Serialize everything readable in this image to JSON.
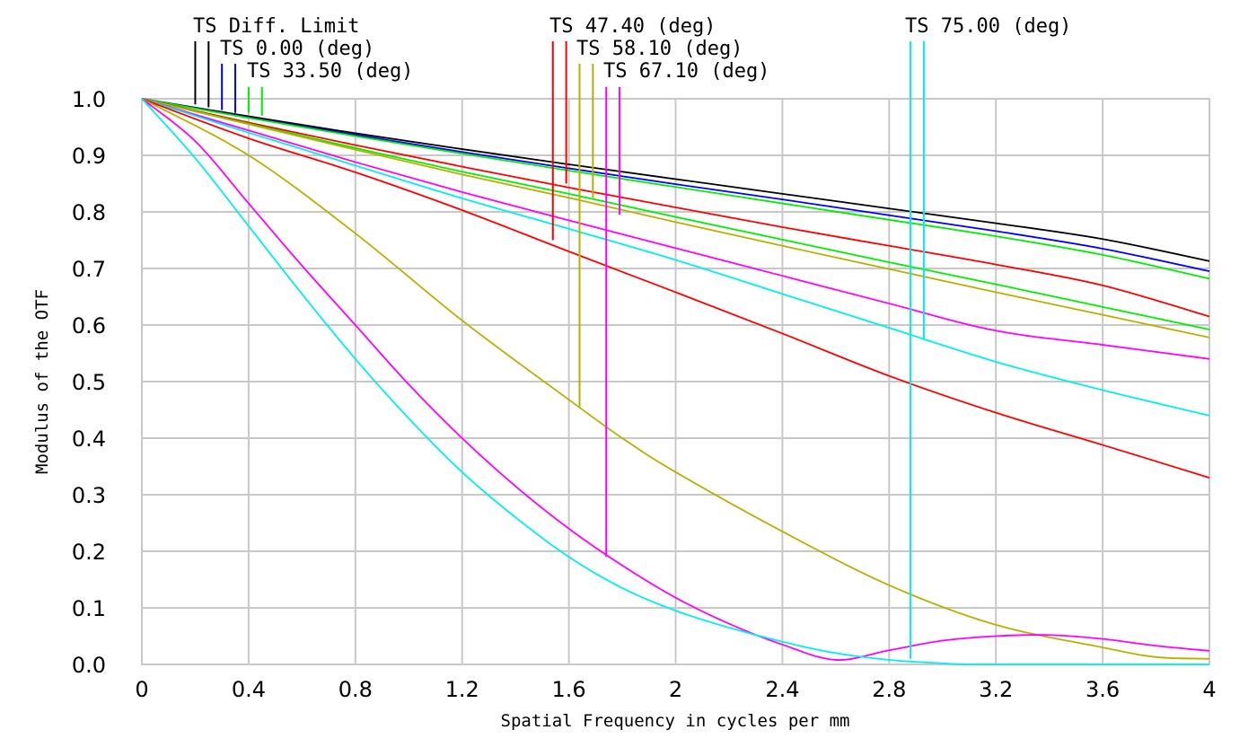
{
  "chart_data": {
    "type": "line",
    "title": "",
    "xlabel": "Spatial Frequency in cycles per mm",
    "ylabel": "Modulus of the OTF",
    "xlim": [
      0,
      4
    ],
    "ylim": [
      0,
      1
    ],
    "grid": true,
    "legend_placement": "top",
    "x_tick_values": [
      0,
      0.4,
      0.8,
      1.2,
      1.6,
      2,
      2.4,
      2.8,
      3.2,
      3.6,
      4
    ],
    "x_tick_labels": [
      "0",
      "0.4",
      "0.8",
      "1.2",
      "1.6",
      "2",
      "2.4",
      "2.8",
      "3.2",
      "3.6",
      "4"
    ],
    "y_tick_values": [
      0,
      0.1,
      0.2,
      0.3,
      0.4,
      0.5,
      0.6,
      0.7,
      0.8,
      0.9,
      1.0
    ],
    "y_tick_labels": [
      "0.0",
      "0.1",
      "0.2",
      "0.3",
      "0.4",
      "0.5",
      "0.6",
      "0.7",
      "0.8",
      "0.9",
      "1.0"
    ],
    "legend": [
      {
        "label": "TS Diff. Limit",
        "color": "#000000",
        "markers": [
          {
            "x": 0.2,
            "y": 0.99
          },
          {
            "x": 0.25,
            "y": 0.985
          }
        ]
      },
      {
        "label": "TS 0.00 (deg)",
        "color": "#0000ff",
        "markers": [
          {
            "x": 0.3,
            "y": 0.98
          },
          {
            "x": 0.35,
            "y": 0.975
          }
        ]
      },
      {
        "label": "TS 33.50 (deg)",
        "color": "#00ee00",
        "markers": [
          {
            "x": 0.4,
            "y": 0.975
          },
          {
            "x": 0.45,
            "y": 0.97
          }
        ]
      },
      {
        "label": "TS 47.40 (deg)",
        "color": "#ff0000",
        "markers": [
          {
            "x": 1.54,
            "y": 0.75
          },
          {
            "x": 1.59,
            "y": 0.85
          }
        ]
      },
      {
        "label": "TS 58.10 (deg)",
        "color": "#b8b000",
        "markers": [
          {
            "x": 1.64,
            "y": 0.455
          },
          {
            "x": 1.69,
            "y": 0.825
          }
        ]
      },
      {
        "label": "TS 67.10 (deg)",
        "color": "#ff00ff",
        "markers": [
          {
            "x": 1.74,
            "y": 0.19
          },
          {
            "x": 1.79,
            "y": 0.795
          }
        ]
      },
      {
        "label": "TS 75.00 (deg)",
        "color": "#00eeee",
        "markers": [
          {
            "x": 2.88,
            "y": 0.01
          },
          {
            "x": 2.93,
            "y": 0.575
          }
        ]
      }
    ],
    "series": [
      {
        "color": "#000000",
        "x": [
          0,
          0.4,
          0.8,
          1.2,
          1.6,
          2,
          2.4,
          2.8,
          3.2,
          3.6,
          4
        ],
        "y": [
          1.0,
          0.969,
          0.939,
          0.911,
          0.884,
          0.858,
          0.832,
          0.806,
          0.78,
          0.752,
          0.713
        ]
      },
      {
        "color": "#0000ff",
        "x": [
          0,
          0.4,
          0.8,
          1.2,
          1.6,
          2,
          2.4,
          2.8,
          3.2,
          3.6,
          4
        ],
        "y": [
          1.0,
          0.967,
          0.936,
          0.906,
          0.877,
          0.849,
          0.822,
          0.794,
          0.766,
          0.735,
          0.695
        ]
      },
      {
        "color": "#00ee00",
        "x": [
          0,
          0.4,
          0.8,
          1.2,
          1.6,
          2,
          2.4,
          2.8,
          3.2,
          3.6,
          4
        ],
        "y": [
          1.0,
          0.966,
          0.934,
          0.903,
          0.873,
          0.844,
          0.815,
          0.786,
          0.757,
          0.724,
          0.682
        ]
      },
      {
        "color": "#ff0000",
        "x": [
          0,
          0.4,
          0.8,
          1.2,
          1.6,
          2,
          2.4,
          2.8,
          3.2,
          3.6,
          4
        ],
        "y": [
          1.0,
          0.958,
          0.918,
          0.88,
          0.843,
          0.808,
          0.773,
          0.74,
          0.707,
          0.67,
          0.615
        ]
      },
      {
        "color": "#00ee00",
        "x": [
          0,
          0.4,
          0.8,
          1.2,
          1.6,
          2,
          2.4,
          2.8,
          3.2,
          3.6,
          4
        ],
        "y": [
          1.0,
          0.956,
          0.913,
          0.871,
          0.832,
          0.791,
          0.751,
          0.711,
          0.672,
          0.632,
          0.592
        ]
      },
      {
        "color": "#b8b000",
        "x": [
          0,
          0.4,
          0.8,
          1.2,
          1.6,
          2,
          2.4,
          2.8,
          3.2,
          3.6,
          4
        ],
        "y": [
          1.0,
          0.955,
          0.91,
          0.866,
          0.825,
          0.782,
          0.74,
          0.699,
          0.658,
          0.618,
          0.578
        ]
      },
      {
        "color": "#ff00ff",
        "x": [
          0,
          0.4,
          0.8,
          1.2,
          1.6,
          2,
          2.4,
          2.8,
          3.2,
          3.6,
          4
        ],
        "y": [
          1.0,
          0.944,
          0.888,
          0.835,
          0.785,
          0.736,
          0.687,
          0.638,
          0.59,
          0.565,
          0.54
        ]
      },
      {
        "color": "#00eeee",
        "x": [
          0,
          0.4,
          0.8,
          1.2,
          1.6,
          2,
          2.4,
          2.8,
          3.2,
          3.6,
          4
        ],
        "y": [
          1.0,
          0.94,
          0.882,
          0.824,
          0.77,
          0.715,
          0.655,
          0.595,
          0.535,
          0.485,
          0.44
        ]
      },
      {
        "color": "#ff0000",
        "x": [
          0,
          0.4,
          0.8,
          1.2,
          1.6,
          2,
          2.4,
          2.8,
          3.2,
          3.6,
          4
        ],
        "y": [
          1.0,
          0.93,
          0.87,
          0.803,
          0.73,
          0.658,
          0.585,
          0.51,
          0.445,
          0.388,
          0.33
        ]
      },
      {
        "color": "#b8b000",
        "x": [
          0,
          0.4,
          0.8,
          1.2,
          1.6,
          1.8,
          2,
          2.4,
          2.8,
          3.2,
          3.6,
          3.8,
          4
        ],
        "y": [
          1.0,
          0.9,
          0.762,
          0.608,
          0.468,
          0.4,
          0.34,
          0.235,
          0.14,
          0.07,
          0.03,
          0.013,
          0.01
        ]
      },
      {
        "color": "#ff00ff",
        "x": [
          0,
          0.2,
          0.4,
          0.6,
          0.8,
          1.0,
          1.2,
          1.4,
          1.6,
          1.8,
          2.0,
          2.2,
          2.4,
          2.6,
          2.8,
          3.0,
          3.2,
          3.4,
          3.6,
          3.8,
          4.0
        ],
        "y": [
          1.0,
          0.925,
          0.815,
          0.705,
          0.6,
          0.495,
          0.4,
          0.315,
          0.24,
          0.175,
          0.118,
          0.072,
          0.035,
          0.008,
          0.025,
          0.042,
          0.05,
          0.052,
          0.045,
          0.033,
          0.024
        ]
      },
      {
        "color": "#00eeee",
        "x": [
          0,
          0.2,
          0.4,
          0.6,
          0.8,
          1.0,
          1.2,
          1.4,
          1.6,
          1.8,
          2.0,
          2.2,
          2.4,
          2.6,
          2.8,
          3.0,
          3.1,
          3.4,
          3.8,
          4.0
        ],
        "y": [
          1.0,
          0.895,
          0.775,
          0.655,
          0.54,
          0.435,
          0.34,
          0.26,
          0.19,
          0.135,
          0.095,
          0.065,
          0.04,
          0.02,
          0.008,
          0.002,
          0.0,
          0.0,
          0.0,
          0.0
        ]
      }
    ]
  }
}
